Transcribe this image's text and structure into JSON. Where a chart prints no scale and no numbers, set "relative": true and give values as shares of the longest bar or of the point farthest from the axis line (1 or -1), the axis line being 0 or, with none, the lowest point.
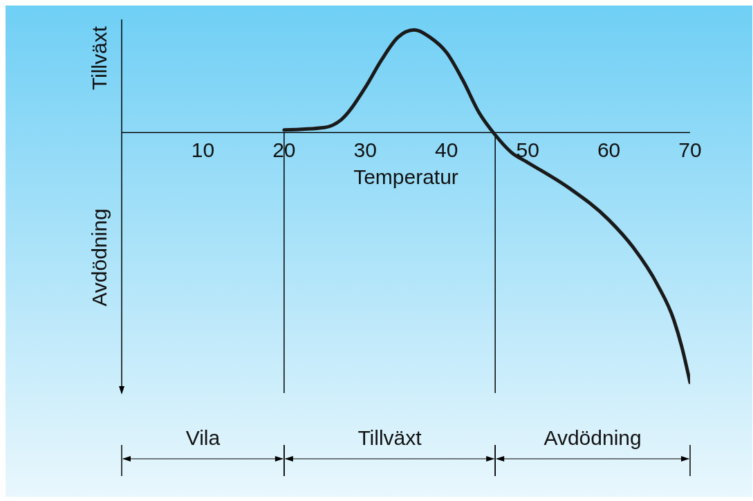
{
  "chart_data": {
    "type": "line",
    "relative": true,
    "xlabel": "Temperatur",
    "ylabel": "Tillväxt",
    "annotations": [
      "Avdödning",
      "Vila",
      "Tillväxt",
      "Avdödning"
    ],
    "x": [
      20,
      25,
      27,
      30,
      32,
      34,
      36,
      38,
      40,
      42,
      44,
      46,
      48,
      50,
      55,
      60,
      63,
      66,
      68,
      69,
      70
    ],
    "series": [
      {
        "color": "#1a1a1a",
        "values": [
          0.01,
          0.02,
          0.05,
          0.18,
          0.29,
          0.38,
          0.41,
          0.38,
          0.32,
          0.21,
          0.08,
          -0.01,
          -0.08,
          -0.12,
          -0.22,
          -0.35,
          -0.46,
          -0.61,
          -0.75,
          -0.86,
          -1
        ]
      }
    ],
    "xlim": [
      0,
      70
    ],
    "xticks": [
      10,
      20,
      30,
      40,
      50,
      60,
      70
    ],
    "ref_lines": [
      {
        "axis": "x",
        "value": 20
      },
      {
        "axis": "x",
        "value": 46
      }
    ],
    "marker": "none",
    "line_style": "solid"
  }
}
